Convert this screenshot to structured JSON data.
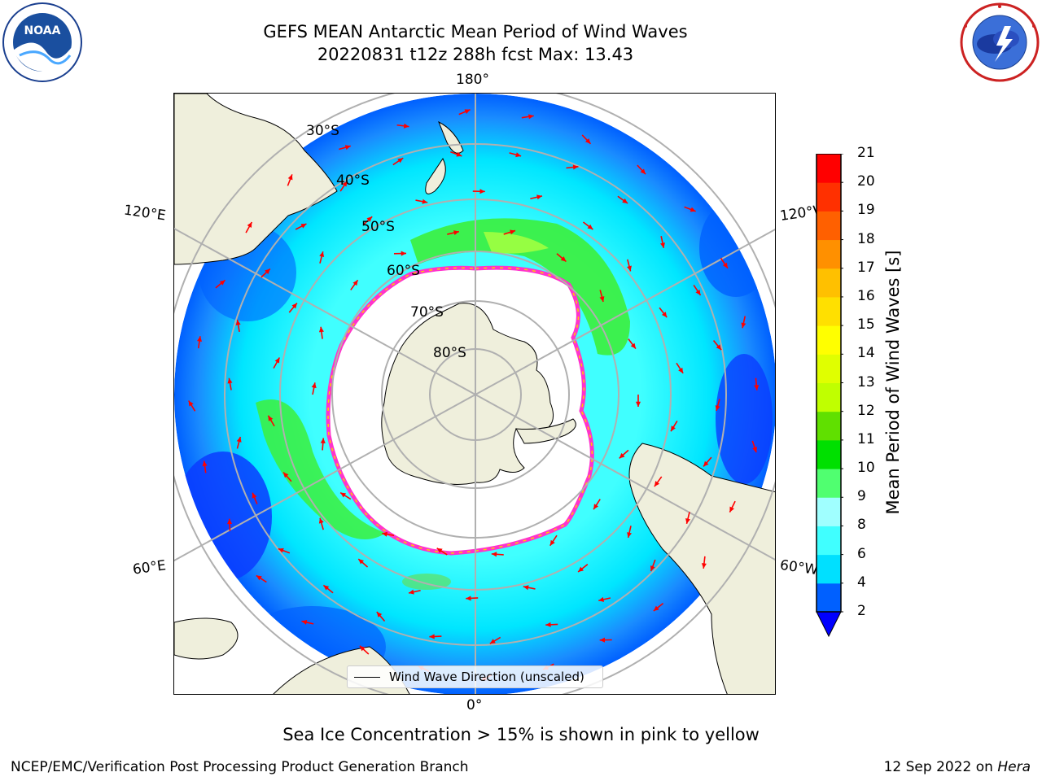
{
  "title": {
    "line1": "GEFS MEAN Antarctic Mean Period of Wind Waves",
    "line2": "20220831 t12z 288h fcst   Max: 13.43"
  },
  "logos": {
    "left": "noaa-logo",
    "right": "nws-logo"
  },
  "map": {
    "projection": "south-polar-stereographic",
    "longitude_labels": [
      "180°",
      "120°E",
      "120°W",
      "60°E",
      "60°W",
      "0°"
    ],
    "latitude_labels": [
      "30°S",
      "40°S",
      "50°S",
      "60°S",
      "70°S",
      "80°S"
    ],
    "legend": "Wind Wave Direction (unscaled)",
    "colors": {
      "land": "#efefdc",
      "sea_ice": "#ffffff",
      "ice_edge": "#ff33cc",
      "arrow": "#ff0000",
      "grid": "#b0b0b0"
    }
  },
  "colorbar": {
    "label": "Mean Period of Wind Waves [s]",
    "ticks": [
      "2",
      "4",
      "6",
      "8",
      "9",
      "10",
      "11",
      "12",
      "13",
      "14",
      "15",
      "16",
      "17",
      "18",
      "19",
      "20",
      "21"
    ],
    "colors": [
      "#0060ff",
      "#00e0ff",
      "#40ffff",
      "#a0ffff",
      "#50ff70",
      "#00e000",
      "#60e000",
      "#c0ff00",
      "#e0ff00",
      "#ffff00",
      "#ffe000",
      "#ffc000",
      "#ff9000",
      "#ff6000",
      "#ff3000",
      "#ff0000"
    ],
    "extend": "min",
    "extend_color": "#0000ff"
  },
  "note": "Sea Ice Concentration > 15% is shown in pink to yellow",
  "footer": {
    "left": "NCEP/EMC/Verification Post Processing Product Generation Branch",
    "date": "12 Sep 2022 on ",
    "host": "Hera"
  }
}
